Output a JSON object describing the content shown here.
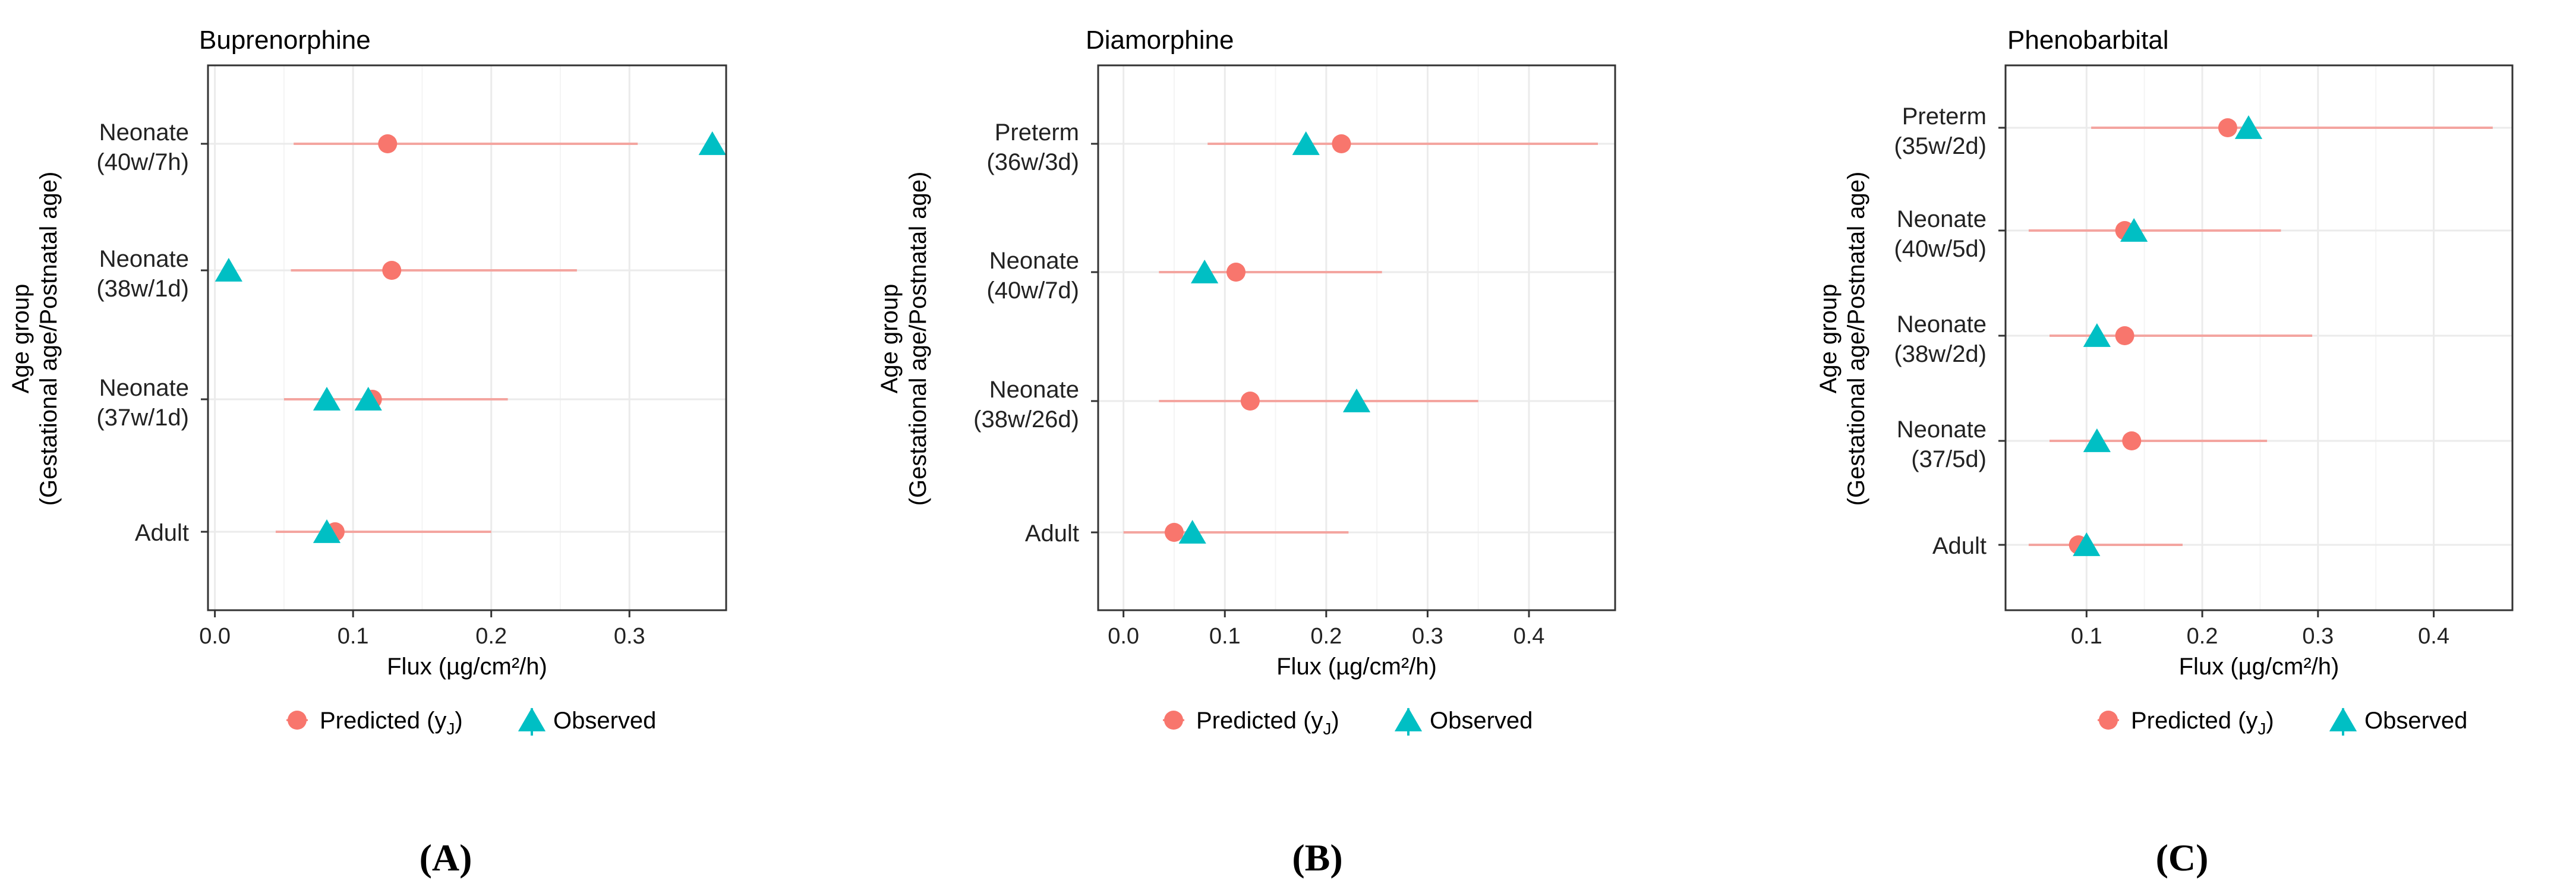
{
  "figure": {
    "panel_letters": [
      "(A)",
      "(B)",
      "(C)"
    ]
  },
  "legend": {
    "predicted_label": "Predicted (y",
    "predicted_subscript": "J",
    "predicted_close": ")",
    "observed_label": "Observed"
  },
  "colors": {
    "predicted": "#F8766D",
    "predicted_line": "#F4A5A0",
    "observed": "#00BFC4",
    "panel_border": "#333333",
    "grid": "#EBEBEB",
    "tick_text": "#222222"
  },
  "chart_data": [
    {
      "type": "dot-range",
      "title": "Buprenorphine",
      "xlabel": "Flux (µg/cm²/h)",
      "ylabel_line1": "Age group",
      "ylabel_line2": "(Gestational age/Postnatal age)",
      "xlim": [
        -0.005,
        0.37
      ],
      "x_ticks": [
        0.0,
        0.1,
        0.2,
        0.3
      ],
      "x_tick_labels": [
        "0.0",
        "0.1",
        "0.2",
        "0.3"
      ],
      "categories": [
        {
          "line1": "Neonate",
          "line2": "(40w/7h)",
          "predicted": 0.125,
          "lower": 0.057,
          "upper": 0.306,
          "observed": [
            0.36
          ]
        },
        {
          "line1": "Neonate",
          "line2": "(38w/1d)",
          "predicted": 0.128,
          "lower": 0.055,
          "upper": 0.262,
          "observed": [
            0.01
          ]
        },
        {
          "line1": "Neonate",
          "line2": "(37w/1d)",
          "predicted": 0.114,
          "lower": 0.05,
          "upper": 0.212,
          "observed": [
            0.081,
            0.111
          ]
        },
        {
          "line1": "Adult",
          "line2": "",
          "predicted": 0.087,
          "lower": 0.044,
          "upper": 0.2,
          "observed": [
            0.081
          ]
        }
      ]
    },
    {
      "type": "dot-range",
      "title": "Diamorphine",
      "xlabel": "Flux (µg/cm²/h)",
      "ylabel_line1": "Age group",
      "ylabel_line2": "(Gestational age/Postnatal age)",
      "xlim": [
        -0.025,
        0.485
      ],
      "x_ticks": [
        0.0,
        0.1,
        0.2,
        0.3,
        0.4
      ],
      "x_tick_labels": [
        "0.0",
        "0.1",
        "0.2",
        "0.3",
        "0.4"
      ],
      "categories": [
        {
          "line1": "Preterm",
          "line2": "(36w/3d)",
          "predicted": 0.215,
          "lower": 0.083,
          "upper": 0.468,
          "observed": [
            0.18
          ]
        },
        {
          "line1": "Neonate",
          "line2": "(40w/7d)",
          "predicted": 0.111,
          "lower": 0.035,
          "upper": 0.255,
          "observed": [
            0.08
          ]
        },
        {
          "line1": "Neonate",
          "line2": "(38w/26d)",
          "predicted": 0.125,
          "lower": 0.035,
          "upper": 0.35,
          "observed": [
            0.23
          ]
        },
        {
          "line1": "Adult",
          "line2": "",
          "predicted": 0.05,
          "lower": 0.0,
          "upper": 0.222,
          "observed": [
            0.068
          ]
        }
      ]
    },
    {
      "type": "dot-range",
      "title": "Phenobarbital",
      "xlabel": "Flux (µg/cm²/h)",
      "ylabel_line1": "Age group",
      "ylabel_line2": "(Gestational age/Postnatal age)",
      "xlim": [
        0.03,
        0.468
      ],
      "x_ticks": [
        0.1,
        0.2,
        0.3,
        0.4
      ],
      "x_tick_labels": [
        "0.1",
        "0.2",
        "0.3",
        "0.4"
      ],
      "categories": [
        {
          "line1": "Preterm",
          "line2": "(35w/2d)",
          "predicted": 0.222,
          "lower": 0.104,
          "upper": 0.451,
          "observed": [
            0.24
          ]
        },
        {
          "line1": "Neonate",
          "line2": "(40w/5d)",
          "predicted": 0.133,
          "lower": 0.05,
          "upper": 0.268,
          "observed": [
            0.141
          ]
        },
        {
          "line1": "Neonate",
          "line2": "(38w/2d)",
          "predicted": 0.133,
          "lower": 0.068,
          "upper": 0.295,
          "observed": [
            0.109
          ]
        },
        {
          "line1": "Neonate",
          "line2": "(37/5d)",
          "predicted": 0.139,
          "lower": 0.068,
          "upper": 0.256,
          "observed": [
            0.109
          ]
        },
        {
          "line1": "Adult",
          "line2": "",
          "predicted": 0.093,
          "lower": 0.05,
          "upper": 0.183,
          "observed": [
            0.1
          ]
        }
      ]
    }
  ]
}
